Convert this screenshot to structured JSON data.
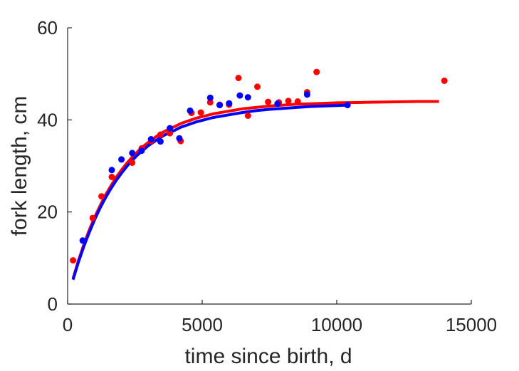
{
  "chart_data": {
    "type": "scatter",
    "xlabel": "time since birth, d",
    "ylabel": "fork length, cm",
    "xlim": [
      0,
      15000
    ],
    "ylim": [
      0,
      60
    ],
    "xticks": [
      0,
      5000,
      10000,
      15000
    ],
    "yticks": [
      0,
      20,
      40,
      60
    ],
    "xtick_labels": [
      "0",
      "5000",
      "10000",
      "15000"
    ],
    "ytick_labels": [
      "0",
      "20",
      "40",
      "60"
    ],
    "grid": false,
    "legend": "none",
    "series": [
      {
        "kind": "points",
        "color": "#ff0000",
        "x": [
          200,
          560,
          930,
          1260,
          1640,
          2000,
          2400,
          2750,
          3100,
          3450,
          3800,
          4200,
          4600,
          4950,
          5300,
          5650,
          6000,
          6350,
          6700,
          7050,
          7450,
          7850,
          8200,
          8550,
          8900,
          9250,
          14000
        ],
        "y": [
          9.5,
          13.8,
          18.7,
          23.4,
          27.6,
          31.4,
          30.7,
          33.8,
          35.4,
          36.8,
          37.1,
          35.4,
          41.5,
          41.6,
          43.8,
          43.3,
          43.3,
          49.1,
          40.9,
          47.2,
          43.9,
          43.8,
          44.1,
          44.0,
          46.0,
          50.4,
          48.5
        ]
      },
      {
        "kind": "points",
        "color": "#0000ff",
        "x": [
          560,
          1640,
          2000,
          2400,
          2750,
          3100,
          3450,
          3800,
          4150,
          4550,
          5300,
          5650,
          6000,
          6400,
          6700,
          7800,
          8900,
          10400
        ],
        "y": [
          13.8,
          29.1,
          31.4,
          32.8,
          33.3,
          35.8,
          35.3,
          38.2,
          36.0,
          42.0,
          44.8,
          43.2,
          43.6,
          45.3,
          44.9,
          43.5,
          45.5,
          43.2
        ]
      },
      {
        "kind": "curve",
        "color": "#ff0000",
        "x": [
          200,
          400,
          600,
          800,
          1000,
          1200,
          1400,
          1600,
          1800,
          2000,
          2200,
          2400,
          2600,
          2800,
          3000,
          3200,
          3400,
          3600,
          3800,
          4000,
          4200,
          4400,
          4600,
          4800,
          5000,
          5200,
          5400,
          5600,
          5800,
          6000,
          6500,
          7000,
          7500,
          8000,
          8500,
          9000,
          9500,
          10000,
          11000,
          12000,
          13000,
          13800
        ],
        "y": [
          5.5,
          9.4,
          12.9,
          16.0,
          18.8,
          21.3,
          23.6,
          25.6,
          27.5,
          29.1,
          30.6,
          31.9,
          33.1,
          34.2,
          35.1,
          36.0,
          36.8,
          37.5,
          38.1,
          38.6,
          39.2,
          39.6,
          40.0,
          40.4,
          40.7,
          41.0,
          41.3,
          41.5,
          41.7,
          41.9,
          42.4,
          42.7,
          43.0,
          43.2,
          43.4,
          43.5,
          43.6,
          43.7,
          43.8,
          43.9,
          44.0,
          44.0
        ]
      },
      {
        "kind": "curve",
        "color": "#0000ff",
        "x": [
          200,
          400,
          600,
          800,
          1000,
          1200,
          1400,
          1600,
          1800,
          2000,
          2200,
          2400,
          2600,
          2800,
          3000,
          3200,
          3400,
          3600,
          3800,
          4000,
          4200,
          4400,
          4600,
          4800,
          5000,
          5200,
          5400,
          5600,
          5800,
          6000,
          6500,
          7000,
          7500,
          8000,
          8500,
          9000,
          9500,
          10000,
          10400
        ],
        "y": [
          5.3,
          9.1,
          12.5,
          15.5,
          18.3,
          20.8,
          23.0,
          25.0,
          26.8,
          28.4,
          29.9,
          31.2,
          32.4,
          33.4,
          34.4,
          35.2,
          36.0,
          36.7,
          37.3,
          37.8,
          38.4,
          38.8,
          39.2,
          39.6,
          39.9,
          40.2,
          40.5,
          40.7,
          40.9,
          41.1,
          41.6,
          42.0,
          42.3,
          42.5,
          42.7,
          42.9,
          43.0,
          43.1,
          43.2
        ]
      }
    ]
  }
}
